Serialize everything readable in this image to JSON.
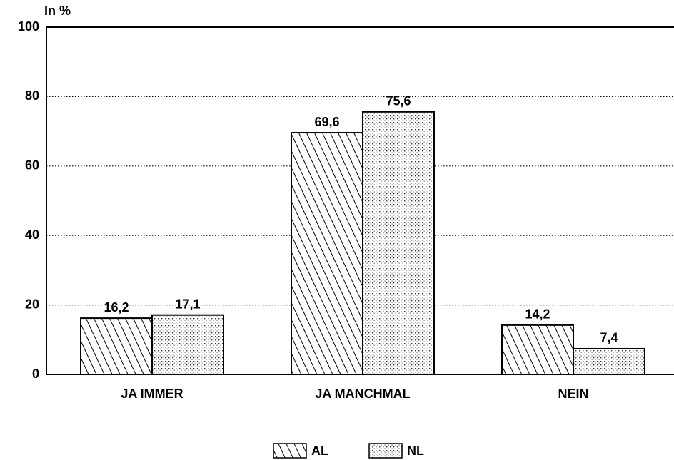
{
  "chart_data": {
    "type": "bar",
    "y_label": "In %",
    "categories": [
      "JA IMMER",
      "JA MANCHMAL",
      "NEIN"
    ],
    "series": [
      {
        "name": "AL",
        "color": "#000000",
        "pattern": "hatch",
        "values": [
          16.2,
          69.6,
          14.2
        ],
        "value_labels": [
          "16,2",
          "69,6",
          "14,2"
        ]
      },
      {
        "name": "NL",
        "color": "#000000",
        "pattern": "dots",
        "values": [
          17.1,
          75.6,
          7.4
        ],
        "value_labels": [
          "17,1",
          "75,6",
          "7,4"
        ]
      }
    ],
    "ylim": [
      0,
      100
    ],
    "yticks": [
      0,
      20,
      40,
      60,
      80,
      100
    ],
    "grid": true,
    "legend": "bottom"
  }
}
